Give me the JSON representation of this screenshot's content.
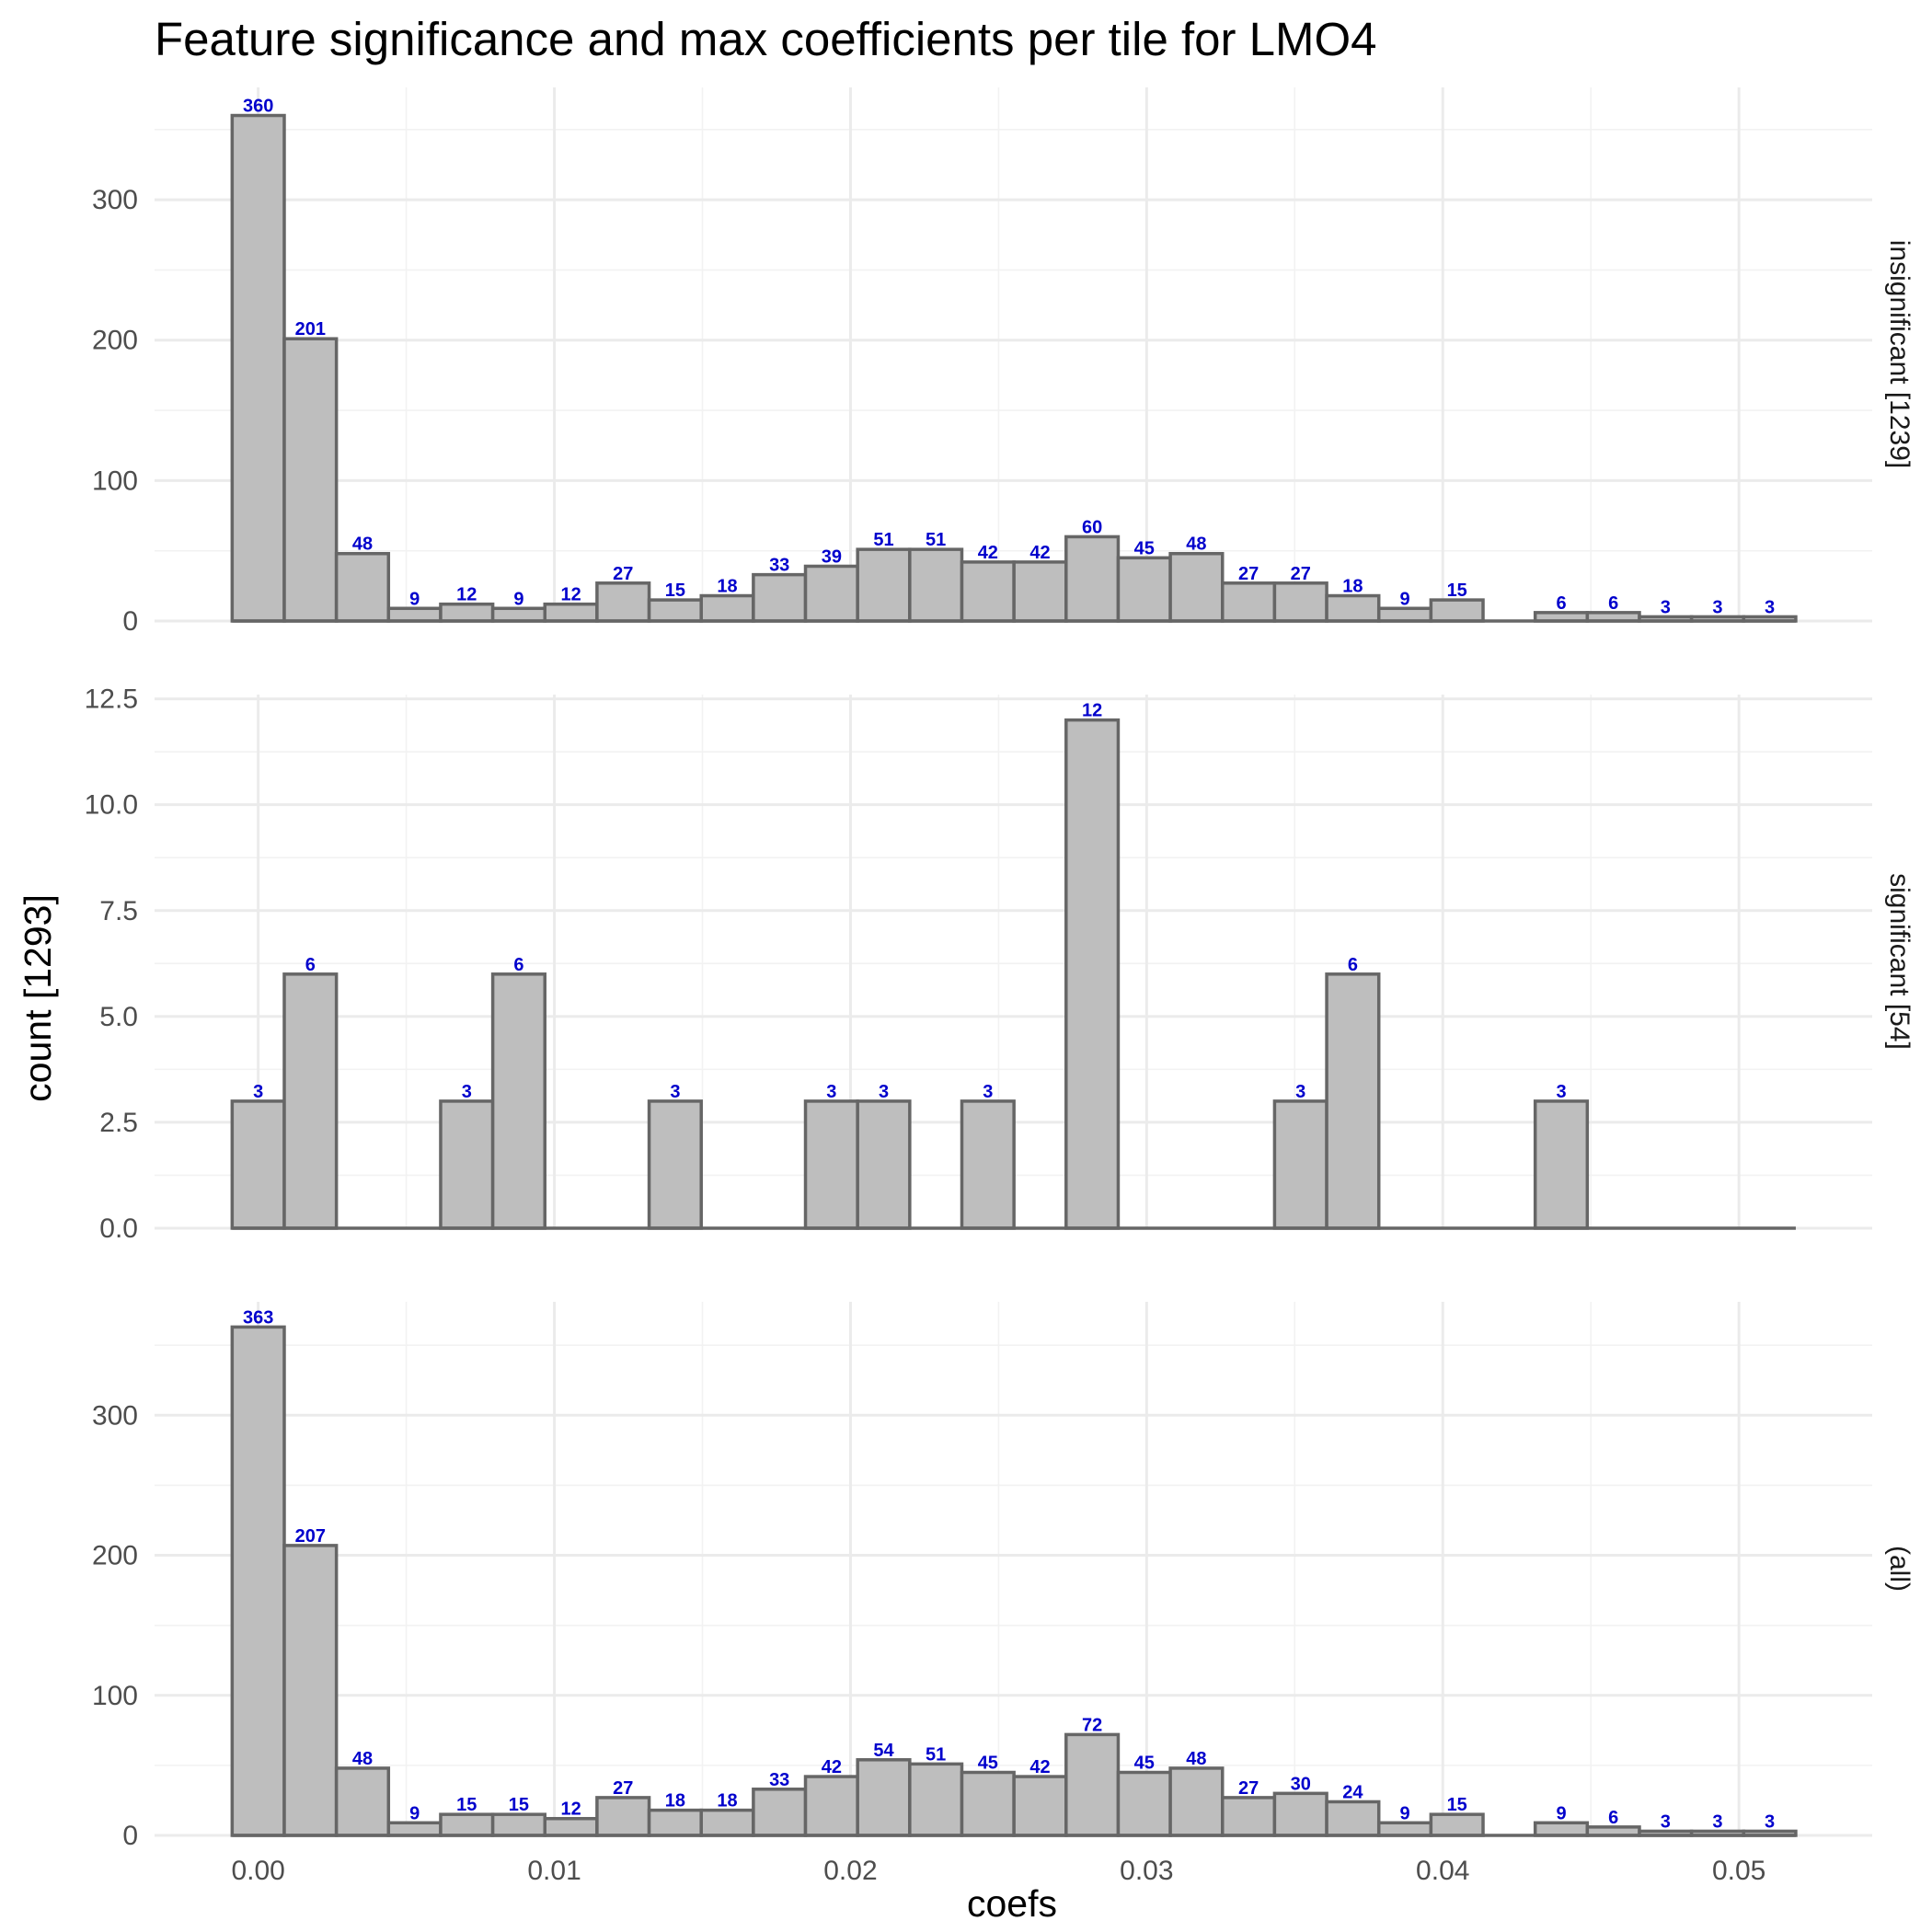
{
  "chart_data": {
    "type": "bar",
    "title": "Feature significance and max coefficients per tile for LMO4",
    "xlabel": "coefs",
    "ylabel": "count [1293]",
    "xlim": [
      -0.0035,
      0.0545
    ],
    "x_ticks": [
      0.0,
      0.01,
      0.02,
      0.03,
      0.04,
      0.05
    ],
    "x_tick_labels": [
      "0.00",
      "0.01",
      "0.02",
      "0.03",
      "0.04",
      "0.05"
    ],
    "bin_centers": [
      0.0,
      0.00176,
      0.00352,
      0.00528,
      0.00704,
      0.0088,
      0.01056,
      0.01232,
      0.01408,
      0.01584,
      0.0176,
      0.01936,
      0.02112,
      0.02288,
      0.02464,
      0.0264,
      0.02816,
      0.02992,
      0.03168,
      0.03344,
      0.0352,
      0.03696,
      0.03872,
      0.04048,
      0.04224,
      0.044,
      0.04576,
      0.04752,
      0.04928,
      0.05104
    ],
    "panels": [
      {
        "strip": "insignificant [1239]",
        "ylim": [
          0,
          380
        ],
        "y_ticks": [
          0,
          100,
          200,
          300
        ],
        "y_tick_labels": [
          "0",
          "100",
          "200",
          "300"
        ],
        "values": [
          360,
          201,
          48,
          9,
          12,
          9,
          12,
          27,
          15,
          18,
          33,
          39,
          51,
          51,
          42,
          42,
          60,
          45,
          48,
          27,
          27,
          18,
          9,
          15,
          0,
          6,
          6,
          3,
          3,
          3
        ]
      },
      {
        "strip": "significant [54]",
        "ylim": [
          0,
          12.6
        ],
        "y_ticks": [
          0,
          2.5,
          5,
          7.5,
          10,
          12.5
        ],
        "y_tick_labels": [
          "0.0",
          "2.5",
          "5.0",
          "7.5",
          "10.0",
          "12.5"
        ],
        "values": [
          3,
          6,
          0,
          0,
          3,
          6,
          0,
          0,
          3,
          0,
          0,
          3,
          3,
          0,
          3,
          0,
          12,
          0,
          0,
          0,
          3,
          6,
          0,
          0,
          0,
          3,
          0,
          0,
          0,
          0
        ]
      },
      {
        "strip": "(all)",
        "ylim": [
          0,
          381
        ],
        "y_ticks": [
          0,
          100,
          200,
          300
        ],
        "y_tick_labels": [
          "0",
          "100",
          "200",
          "300"
        ],
        "values": [
          363,
          207,
          48,
          9,
          15,
          15,
          12,
          27,
          18,
          18,
          33,
          42,
          54,
          51,
          45,
          42,
          72,
          45,
          48,
          27,
          30,
          24,
          9,
          15,
          0,
          9,
          6,
          3,
          3,
          3
        ]
      }
    ],
    "colors": {
      "bar_fill": "#bebebe",
      "bar_stroke": "#666666",
      "label": "#0000cc"
    },
    "grid": true,
    "legend": "none"
  }
}
